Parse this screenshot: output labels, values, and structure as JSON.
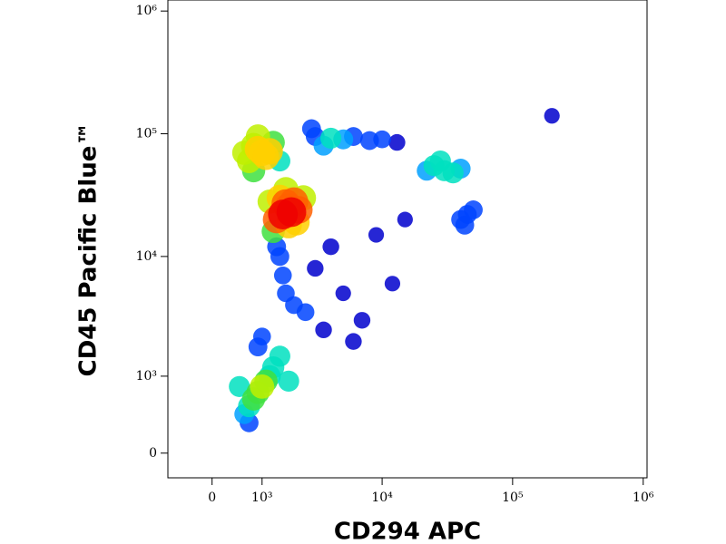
{
  "chart_data": {
    "type": "scatter",
    "x_label": "CD294 APC",
    "y_label": "CD45 Pacific Blue™",
    "scale": "asinh",
    "xlim": [
      -860,
      1070000
    ],
    "ylim": [
      -240,
      1230000
    ],
    "xticks": [
      0,
      {
        "value": 1000,
        "label": "10³"
      },
      {
        "value": 10000,
        "label": "10⁴"
      },
      {
        "value": 100000,
        "label": "10⁵"
      },
      {
        "value": 1000000,
        "label": "10⁶"
      }
    ],
    "yticks": [
      0,
      {
        "value": 1000,
        "label": "10³"
      },
      {
        "value": 10000,
        "label": "10⁴"
      },
      {
        "value": 100000,
        "label": "10⁵"
      },
      {
        "value": 1000000,
        "label": "10⁶"
      }
    ],
    "colormap": [
      "#0000cc",
      "#0044ff",
      "#00a0ff",
      "#00e0c0",
      "#40e040",
      "#c0f000",
      "#ffd000",
      "#ff6000",
      "#ee0000"
    ],
    "x": [
      1800,
      1700,
      1900,
      1600,
      2000,
      1500,
      2200,
      1400,
      1800,
      2400,
      1300,
      1700,
      2100,
      1200,
      1000,
      900,
      1100,
      800,
      1200,
      700,
      1300,
      900,
      600,
      1500,
      800,
      1000,
      900,
      1100,
      800,
      1200,
      700,
      1300,
      600,
      1500,
      900,
      700,
      1800,
      500,
      1000,
      1500,
      1600,
      1700,
      1400,
      2000,
      3000,
      4000,
      5000,
      6000,
      8000,
      10000,
      13000,
      3500,
      2800,
      30000,
      25000,
      35000,
      28000,
      40000,
      22000,
      45000,
      40000,
      50000,
      43000,
      3000,
      5000,
      7000,
      4000,
      9000,
      6000,
      12000,
      3500,
      15000,
      200000,
      2500
    ],
    "y": [
      25000,
      27000,
      23000,
      22000,
      28000,
      30000,
      24000,
      20000,
      18000,
      30000,
      16000,
      35000,
      19000,
      28000,
      70000,
      75000,
      65000,
      80000,
      72000,
      60000,
      85000,
      95000,
      70000,
      60000,
      50000,
      800,
      700,
      900,
      600,
      1000,
      500,
      1200,
      400,
      1500,
      1800,
      300,
      900,
      800,
      2200,
      10000,
      7000,
      5000,
      12000,
      4000,
      95000,
      92000,
      90000,
      95000,
      88000,
      90000,
      85000,
      80000,
      110000,
      50000,
      55000,
      48000,
      60000,
      52000,
      50000,
      22000,
      20000,
      24000,
      18000,
      8000,
      5000,
      3000,
      12000,
      15000,
      2000,
      6000,
      2500,
      20000,
      140000,
      3500
    ]
  }
}
